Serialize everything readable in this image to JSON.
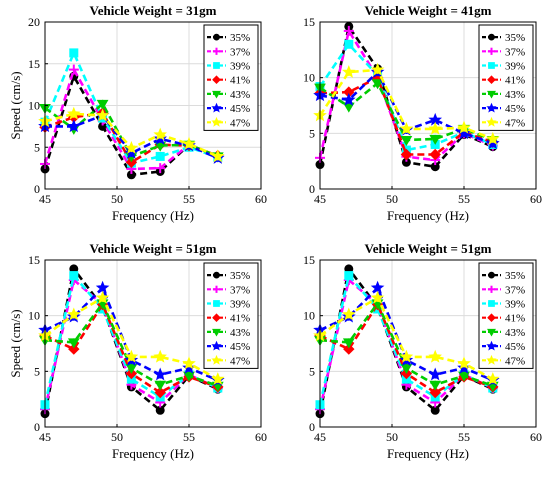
{
  "chart_data": [
    {
      "type": "line",
      "title": "Vehicle Weight = 31gm",
      "xlabel": "Frequency (Hz)",
      "ylabel": "Speed (cm/s)",
      "xlim": [
        45,
        60
      ],
      "ylim": [
        0,
        20
      ],
      "xticks": [
        45,
        50,
        55,
        60
      ],
      "yticks": [
        0,
        5,
        10,
        15,
        20
      ],
      "grid": true,
      "legend": "top-right",
      "x": [
        45,
        47,
        49,
        51,
        53,
        55,
        57
      ],
      "series": [
        {
          "name": "35%",
          "color": "#000000",
          "marker": "circle",
          "values": [
            2.4,
            13.5,
            7.5,
            1.7,
            2.1,
            5.3,
            3.9
          ]
        },
        {
          "name": "37%",
          "color": "#ff00ff",
          "marker": "plus",
          "values": [
            3.0,
            14.3,
            8.2,
            2.4,
            2.5,
            5.3,
            3.9
          ]
        },
        {
          "name": "39%",
          "color": "#00ffff",
          "marker": "square",
          "values": [
            8.0,
            16.3,
            8.5,
            3.1,
            3.9,
            5.0,
            3.8
          ]
        },
        {
          "name": "41%",
          "color": "#ff0000",
          "marker": "diamond",
          "values": [
            7.4,
            8.6,
            9.1,
            3.2,
            5.3,
            5.2,
            4.0
          ]
        },
        {
          "name": "43%",
          "color": "#00cc00",
          "marker": "triangle-down",
          "values": [
            9.7,
            7.2,
            10.2,
            3.9,
            5.2,
            5.3,
            3.9
          ]
        },
        {
          "name": "45%",
          "color": "#0000ff",
          "marker": "star",
          "values": [
            7.5,
            7.5,
            8.8,
            4.3,
            6.0,
            5.2,
            3.7
          ]
        },
        {
          "name": "47%",
          "color": "#ffff00",
          "marker": "star",
          "values": [
            8.1,
            9.0,
            8.8,
            4.9,
            6.5,
            5.4,
            3.9
          ]
        }
      ]
    },
    {
      "type": "line",
      "title": "Vehicle Weight = 41gm",
      "xlabel": "Frequency (Hz)",
      "ylabel": "",
      "xlim": [
        45,
        60
      ],
      "ylim": [
        0,
        15
      ],
      "xticks": [
        45,
        50,
        55,
        60
      ],
      "yticks": [
        0,
        5,
        10,
        15
      ],
      "grid": true,
      "legend": "top-right",
      "x": [
        45,
        47,
        49,
        51,
        53,
        55,
        57
      ],
      "series": [
        {
          "name": "35%",
          "color": "#000000",
          "marker": "circle",
          "values": [
            2.2,
            14.6,
            10.8,
            2.4,
            2.0,
            4.9,
            3.8
          ]
        },
        {
          "name": "37%",
          "color": "#ff00ff",
          "marker": "plus",
          "values": [
            2.8,
            14.2,
            10.0,
            2.9,
            2.6,
            5.0,
            3.9
          ]
        },
        {
          "name": "39%",
          "color": "#00ffff",
          "marker": "square",
          "values": [
            9.2,
            13.0,
            10.2,
            3.5,
            4.0,
            5.1,
            4.0
          ]
        },
        {
          "name": "41%",
          "color": "#ff0000",
          "marker": "diamond",
          "values": [
            8.6,
            8.7,
            10.0,
            3.1,
            3.1,
            5.1,
            4.2
          ]
        },
        {
          "name": "43%",
          "color": "#00cc00",
          "marker": "triangle-down",
          "values": [
            9.1,
            7.4,
            9.5,
            4.4,
            4.5,
            5.4,
            4.4
          ]
        },
        {
          "name": "45%",
          "color": "#0000ff",
          "marker": "star",
          "values": [
            8.4,
            8.0,
            10.5,
            5.3,
            6.2,
            5.0,
            4.1
          ]
        },
        {
          "name": "47%",
          "color": "#ffff00",
          "marker": "star",
          "values": [
            6.6,
            10.5,
            10.7,
            5.4,
            5.4,
            5.5,
            4.5
          ]
        }
      ]
    },
    {
      "type": "line",
      "title": "Vehicle Weight = 51gm",
      "xlabel": "Frequency (Hz)",
      "ylabel": "Speed (cm/s)",
      "xlim": [
        45,
        60
      ],
      "ylim": [
        0,
        15
      ],
      "xticks": [
        45,
        50,
        55,
        60
      ],
      "yticks": [
        0,
        5,
        10,
        15
      ],
      "grid": true,
      "legend": "top-right",
      "x": [
        45,
        47,
        49,
        51,
        53,
        55,
        57
      ],
      "series": [
        {
          "name": "35%",
          "color": "#000000",
          "marker": "circle",
          "values": [
            1.2,
            14.2,
            10.8,
            3.6,
            1.5,
            4.6,
            3.4
          ]
        },
        {
          "name": "37%",
          "color": "#ff00ff",
          "marker": "plus",
          "values": [
            1.6,
            13.2,
            11.0,
            3.8,
            2.2,
            4.7,
            3.5
          ]
        },
        {
          "name": "39%",
          "color": "#00ffff",
          "marker": "square",
          "values": [
            2.0,
            13.6,
            10.6,
            4.3,
            2.7,
            4.7,
            3.5
          ]
        },
        {
          "name": "41%",
          "color": "#ff0000",
          "marker": "diamond",
          "values": [
            8.2,
            7.0,
            11.0,
            4.8,
            3.1,
            4.5,
            3.6
          ]
        },
        {
          "name": "43%",
          "color": "#00cc00",
          "marker": "triangle-down",
          "values": [
            7.8,
            7.6,
            11.1,
            5.3,
            3.8,
            4.6,
            3.7
          ]
        },
        {
          "name": "45%",
          "color": "#0000ff",
          "marker": "star",
          "values": [
            8.7,
            9.9,
            12.5,
            6.0,
            4.7,
            5.3,
            4.2
          ]
        },
        {
          "name": "47%",
          "color": "#ffff00",
          "marker": "star",
          "values": [
            8.2,
            10.1,
            11.6,
            6.3,
            6.3,
            5.7,
            4.3
          ]
        }
      ]
    },
    {
      "type": "line",
      "title": "Vehicle Weight = 51gm",
      "xlabel": "Frequency (Hz)",
      "ylabel": "",
      "xlim": [
        45,
        60
      ],
      "ylim": [
        0,
        15
      ],
      "xticks": [
        45,
        50,
        55,
        60
      ],
      "yticks": [
        0,
        5,
        10,
        15
      ],
      "grid": true,
      "legend": "top-right",
      "x": [
        45,
        47,
        49,
        51,
        53,
        55,
        57
      ],
      "series": [
        {
          "name": "35%",
          "color": "#000000",
          "marker": "circle",
          "values": [
            1.2,
            14.2,
            10.8,
            3.6,
            1.5,
            4.6,
            3.4
          ]
        },
        {
          "name": "37%",
          "color": "#ff00ff",
          "marker": "plus",
          "values": [
            1.6,
            13.2,
            11.0,
            3.8,
            2.2,
            4.7,
            3.5
          ]
        },
        {
          "name": "39%",
          "color": "#00ffff",
          "marker": "square",
          "values": [
            2.0,
            13.6,
            10.6,
            4.3,
            2.7,
            4.7,
            3.5
          ]
        },
        {
          "name": "41%",
          "color": "#ff0000",
          "marker": "diamond",
          "values": [
            8.2,
            7.0,
            11.0,
            4.8,
            3.1,
            4.5,
            3.6
          ]
        },
        {
          "name": "43%",
          "color": "#00cc00",
          "marker": "triangle-down",
          "values": [
            7.8,
            7.6,
            11.1,
            5.3,
            3.8,
            4.6,
            3.7
          ]
        },
        {
          "name": "45%",
          "color": "#0000ff",
          "marker": "star",
          "values": [
            8.7,
            9.9,
            12.5,
            6.0,
            4.7,
            5.3,
            4.2
          ]
        },
        {
          "name": "47%",
          "color": "#ffff00",
          "marker": "star",
          "values": [
            8.2,
            10.1,
            11.6,
            6.3,
            6.3,
            5.7,
            4.3
          ]
        }
      ]
    }
  ]
}
